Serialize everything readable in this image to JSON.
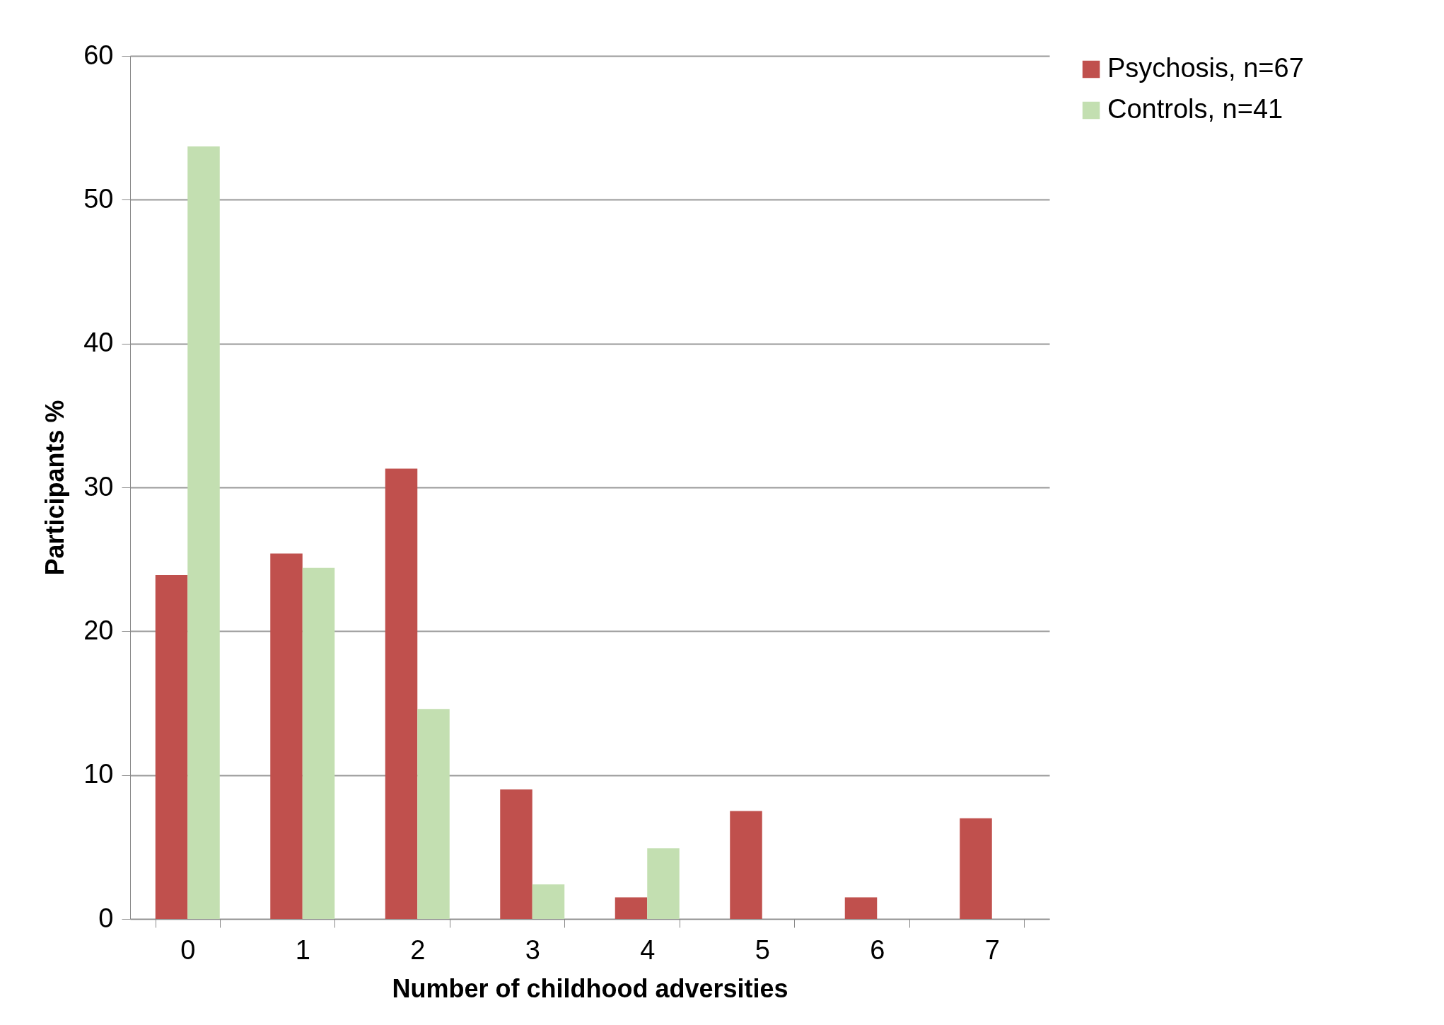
{
  "chart_data": {
    "type": "bar",
    "xlabel": "Number of childhood adversities",
    "ylabel": "Participants %",
    "categories": [
      "0",
      "1",
      "2",
      "3",
      "4",
      "5",
      "6",
      "7"
    ],
    "series": [
      {
        "name": "Psychosis, n=67",
        "color": "#c0504d",
        "values": [
          23.9,
          25.4,
          31.3,
          9.0,
          1.5,
          7.5,
          1.5,
          7.0
        ]
      },
      {
        "name": "Controls, n=41",
        "color": "#c3dfb1",
        "values": [
          53.7,
          24.4,
          14.6,
          2.4,
          4.9,
          0,
          0,
          0
        ]
      }
    ],
    "ylim": [
      0,
      60
    ],
    "yticks": [
      0,
      10,
      20,
      30,
      40,
      50,
      60
    ],
    "grid": "y",
    "legend": "right"
  }
}
